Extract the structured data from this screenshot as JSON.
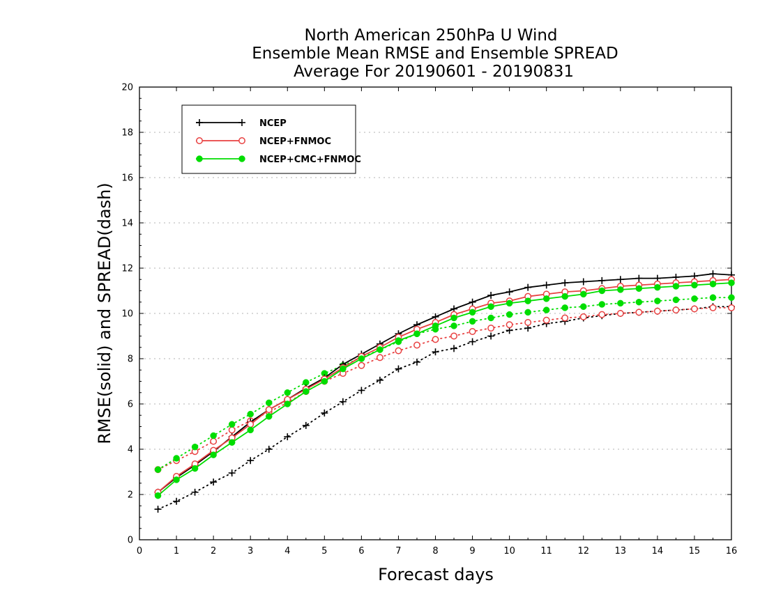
{
  "chart_data": {
    "type": "line",
    "title_lines": [
      "North American 250hPa U Wind",
      "Ensemble Mean RMSE and Ensemble SPREAD",
      "Average For 20190601 - 20190831"
    ],
    "xlabel": "Forecast days",
    "ylabel": "RMSE(solid) and SPREAD(dash)",
    "xlim": [
      0,
      16
    ],
    "ylim": [
      0,
      20
    ],
    "xticks": [
      "0",
      "1",
      "2",
      "3",
      "4",
      "5",
      "6",
      "7",
      "8",
      "9",
      "10",
      "11",
      "12",
      "13",
      "14",
      "15",
      "16"
    ],
    "yticks": [
      "0",
      "2",
      "4",
      "6",
      "8",
      "10",
      "12",
      "14",
      "16",
      "18",
      "20"
    ],
    "grid": "horizontal dotted",
    "legend_position": "top-left",
    "x": [
      0.5,
      1,
      1.5,
      2,
      2.5,
      3,
      3.5,
      4,
      4.5,
      5,
      5.5,
      6,
      6.5,
      7,
      7.5,
      8,
      8.5,
      9,
      9.5,
      10,
      10.5,
      11,
      11.5,
      12,
      12.5,
      13,
      13.5,
      14,
      14.5,
      15,
      15.5,
      16
    ],
    "series": [
      {
        "name": "NCEP",
        "color": "#000000",
        "marker": "plus",
        "rmse": [
          2.1,
          2.75,
          3.3,
          3.9,
          4.55,
          5.2,
          5.75,
          6.2,
          6.7,
          7.15,
          7.75,
          8.2,
          8.65,
          9.1,
          9.5,
          9.85,
          10.2,
          10.5,
          10.8,
          10.95,
          11.15,
          11.25,
          11.35,
          11.4,
          11.45,
          11.5,
          11.55,
          11.55,
          11.6,
          11.65,
          11.75,
          11.7
        ],
        "spread": [
          1.35,
          1.7,
          2.1,
          2.55,
          2.95,
          3.5,
          4.0,
          4.55,
          5.05,
          5.6,
          6.1,
          6.6,
          7.05,
          7.55,
          7.85,
          8.3,
          8.45,
          8.75,
          9.0,
          9.25,
          9.35,
          9.55,
          9.65,
          9.8,
          9.9,
          10.0,
          10.05,
          10.1,
          10.15,
          10.2,
          10.3,
          10.3
        ]
      },
      {
        "name": "NCEP+FNMOC",
        "color": "#e84040",
        "marker": "open-circle",
        "rmse": [
          2.1,
          2.8,
          3.35,
          3.95,
          4.5,
          5.1,
          5.75,
          6.2,
          6.65,
          7.1,
          7.6,
          8.1,
          8.5,
          8.95,
          9.3,
          9.6,
          9.95,
          10.2,
          10.45,
          10.55,
          10.75,
          10.85,
          10.95,
          11.0,
          11.1,
          11.2,
          11.25,
          11.3,
          11.35,
          11.4,
          11.45,
          11.5
        ],
        "spread": [
          3.1,
          3.5,
          3.9,
          4.35,
          4.85,
          5.25,
          5.65,
          6.05,
          6.55,
          7.0,
          7.35,
          7.7,
          8.05,
          8.35,
          8.6,
          8.85,
          9.0,
          9.2,
          9.35,
          9.5,
          9.6,
          9.7,
          9.8,
          9.85,
          9.95,
          10.0,
          10.05,
          10.1,
          10.15,
          10.2,
          10.25,
          10.25
        ]
      },
      {
        "name": "NCEP+CMC+FNMOC",
        "color": "#00dd00",
        "marker": "filled-circle",
        "rmse": [
          1.95,
          2.65,
          3.15,
          3.75,
          4.3,
          4.85,
          5.45,
          6.0,
          6.55,
          7.0,
          7.55,
          8.0,
          8.4,
          8.8,
          9.1,
          9.45,
          9.8,
          10.05,
          10.3,
          10.45,
          10.55,
          10.65,
          10.75,
          10.85,
          11.0,
          11.05,
          11.1,
          11.15,
          11.2,
          11.25,
          11.3,
          11.35
        ],
        "spread": [
          3.1,
          3.6,
          4.1,
          4.6,
          5.1,
          5.55,
          6.05,
          6.5,
          6.95,
          7.35,
          7.7,
          8.05,
          8.4,
          8.75,
          9.1,
          9.3,
          9.45,
          9.65,
          9.8,
          9.95,
          10.05,
          10.15,
          10.25,
          10.3,
          10.4,
          10.45,
          10.5,
          10.55,
          10.6,
          10.65,
          10.7,
          10.7
        ]
      }
    ]
  }
}
